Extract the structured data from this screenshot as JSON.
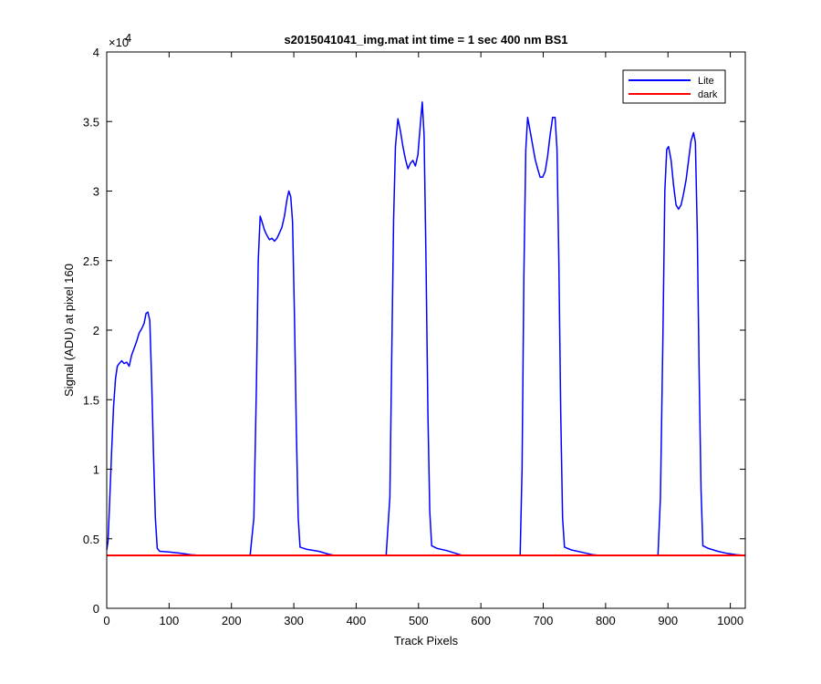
{
  "chart_data": {
    "type": "line",
    "title": "s2015041041_img.mat int time = 1 sec  400 nm BS1",
    "xlabel": "Track Pixels",
    "ylabel": "Signal (ADU) at pixel 160",
    "xlim": [
      0,
      1024
    ],
    "ylim": [
      0,
      40000
    ],
    "x_ticks": [
      0,
      100,
      200,
      300,
      400,
      500,
      600,
      700,
      800,
      900,
      1000
    ],
    "y_ticks": [
      0,
      5000,
      10000,
      15000,
      20000,
      25000,
      30000,
      35000,
      40000
    ],
    "y_tick_labels": [
      "0",
      "0.5",
      "1",
      "1.5",
      "2",
      "2.5",
      "3",
      "3.5",
      "4"
    ],
    "y_exponent": {
      "base": "×10",
      "power": "4"
    },
    "grid": false,
    "legend_position": "top-right",
    "series": [
      {
        "name": "Lite",
        "color": "#0000ff",
        "points": [
          [
            0,
            4200
          ],
          [
            2,
            4800
          ],
          [
            5,
            8000
          ],
          [
            8,
            11500
          ],
          [
            11,
            14500
          ],
          [
            14,
            16500
          ],
          [
            17,
            17400
          ],
          [
            20,
            17600
          ],
          [
            24,
            17800
          ],
          [
            28,
            17600
          ],
          [
            32,
            17700
          ],
          [
            36,
            17400
          ],
          [
            40,
            18200
          ],
          [
            44,
            18700
          ],
          [
            48,
            19200
          ],
          [
            52,
            19800
          ],
          [
            56,
            20100
          ],
          [
            60,
            20500
          ],
          [
            63,
            21200
          ],
          [
            66,
            21300
          ],
          [
            69,
            20700
          ],
          [
            72,
            16500
          ],
          [
            75,
            11000
          ],
          [
            78,
            6500
          ],
          [
            81,
            4300
          ],
          [
            85,
            4100
          ],
          [
            100,
            4050
          ],
          [
            120,
            3950
          ],
          [
            135,
            3850
          ],
          [
            150,
            3800
          ],
          [
            230,
            3800
          ],
          [
            236,
            6500
          ],
          [
            240,
            16000
          ],
          [
            243,
            25000
          ],
          [
            246,
            28200
          ],
          [
            249,
            27800
          ],
          [
            253,
            27200
          ],
          [
            257,
            26800
          ],
          [
            261,
            26500
          ],
          [
            265,
            26600
          ],
          [
            269,
            26400
          ],
          [
            273,
            26600
          ],
          [
            277,
            27000
          ],
          [
            281,
            27400
          ],
          [
            285,
            28200
          ],
          [
            289,
            29400
          ],
          [
            292,
            30000
          ],
          [
            295,
            29600
          ],
          [
            298,
            27800
          ],
          [
            301,
            21000
          ],
          [
            304,
            13000
          ],
          [
            307,
            6500
          ],
          [
            310,
            4400
          ],
          [
            320,
            4250
          ],
          [
            340,
            4100
          ],
          [
            355,
            3900
          ],
          [
            365,
            3800
          ],
          [
            448,
            3800
          ],
          [
            454,
            8000
          ],
          [
            457,
            18000
          ],
          [
            460,
            28000
          ],
          [
            463,
            33200
          ],
          [
            467,
            35200
          ],
          [
            471,
            34300
          ],
          [
            475,
            33200
          ],
          [
            479,
            32300
          ],
          [
            483,
            31600
          ],
          [
            487,
            32000
          ],
          [
            491,
            32200
          ],
          [
            495,
            31800
          ],
          [
            499,
            32600
          ],
          [
            503,
            34800
          ],
          [
            506,
            36400
          ],
          [
            509,
            34000
          ],
          [
            512,
            25000
          ],
          [
            515,
            14000
          ],
          [
            518,
            7000
          ],
          [
            521,
            4500
          ],
          [
            530,
            4300
          ],
          [
            545,
            4150
          ],
          [
            560,
            3950
          ],
          [
            570,
            3800
          ],
          [
            663,
            3800
          ],
          [
            666,
            10000
          ],
          [
            669,
            24000
          ],
          [
            672,
            33000
          ],
          [
            675,
            35300
          ],
          [
            679,
            34300
          ],
          [
            683,
            33300
          ],
          [
            687,
            32300
          ],
          [
            691,
            31600
          ],
          [
            695,
            31000
          ],
          [
            699,
            31000
          ],
          [
            703,
            31400
          ],
          [
            707,
            32500
          ],
          [
            711,
            34000
          ],
          [
            715,
            35300
          ],
          [
            719,
            35300
          ],
          [
            722,
            33000
          ],
          [
            725,
            25000
          ],
          [
            728,
            14000
          ],
          [
            731,
            6500
          ],
          [
            734,
            4400
          ],
          [
            745,
            4200
          ],
          [
            760,
            4050
          ],
          [
            780,
            3850
          ],
          [
            790,
            3800
          ],
          [
            884,
            3800
          ],
          [
            888,
            8000
          ],
          [
            892,
            20000
          ],
          [
            895,
            30000
          ],
          [
            898,
            33000
          ],
          [
            901,
            33200
          ],
          [
            905,
            32200
          ],
          [
            909,
            30400
          ],
          [
            913,
            29000
          ],
          [
            917,
            28700
          ],
          [
            921,
            29000
          ],
          [
            925,
            29800
          ],
          [
            929,
            30800
          ],
          [
            933,
            32200
          ],
          [
            937,
            33600
          ],
          [
            941,
            34200
          ],
          [
            944,
            33500
          ],
          [
            947,
            27000
          ],
          [
            950,
            17000
          ],
          [
            953,
            8500
          ],
          [
            956,
            4500
          ],
          [
            965,
            4300
          ],
          [
            980,
            4100
          ],
          [
            995,
            3950
          ],
          [
            1010,
            3850
          ],
          [
            1024,
            3800
          ]
        ]
      },
      {
        "name": "dark",
        "color": "#ff0000",
        "points": [
          [
            0,
            3800
          ],
          [
            1024,
            3800
          ]
        ]
      }
    ]
  }
}
